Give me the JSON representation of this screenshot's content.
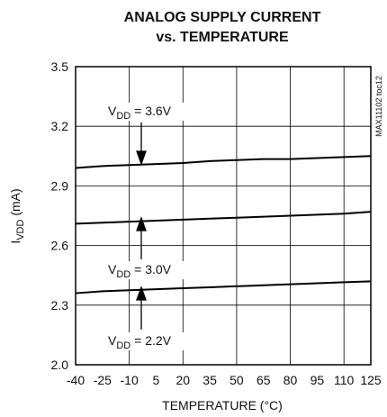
{
  "chart_data": {
    "type": "line",
    "title": [
      "ANALOG SUPPLY CURRENT",
      "vs. TEMPERATURE"
    ],
    "xlabel": "TEMPERATURE (°C)",
    "ylabel": {
      "prefix": "I",
      "subscript": "VDD",
      "suffix": " (mA)"
    },
    "watermark": "MAX11102 toc12",
    "x": [
      -40,
      -25,
      -10,
      5,
      20,
      35,
      50,
      65,
      80,
      95,
      110,
      125
    ],
    "series": [
      {
        "name": "3.6V",
        "color": "#000000",
        "values": [
          2.99,
          3.0,
          3.005,
          3.01,
          3.015,
          3.025,
          3.03,
          3.035,
          3.035,
          3.04,
          3.045,
          3.05
        ]
      },
      {
        "name": "3.0V",
        "color": "#000000",
        "values": [
          2.71,
          2.715,
          2.72,
          2.725,
          2.73,
          2.735,
          2.74,
          2.745,
          2.75,
          2.755,
          2.76,
          2.77
        ]
      },
      {
        "name": "2.2V",
        "color": "#000000",
        "values": [
          2.36,
          2.37,
          2.375,
          2.38,
          2.385,
          2.39,
          2.395,
          2.4,
          2.405,
          2.41,
          2.415,
          2.42
        ]
      }
    ],
    "annotations": [
      {
        "prefix": "V",
        "subscript": "DD",
        "suffix": " = 3.6V"
      },
      {
        "prefix": "V",
        "subscript": "DD",
        "suffix": " = 3.0V"
      },
      {
        "prefix": "V",
        "subscript": "DD",
        "suffix": " = 2.2V"
      }
    ],
    "xlim": [
      -40,
      125
    ],
    "ylim": [
      2.0,
      3.5
    ],
    "xticks": [
      -40,
      -25,
      -10,
      5,
      20,
      35,
      50,
      65,
      80,
      95,
      110,
      125
    ],
    "yticks": [
      {
        "value": 2.0,
        "label": "2.0"
      },
      2.3,
      2.6,
      2.9,
      3.2,
      3.5
    ],
    "grid": true
  }
}
